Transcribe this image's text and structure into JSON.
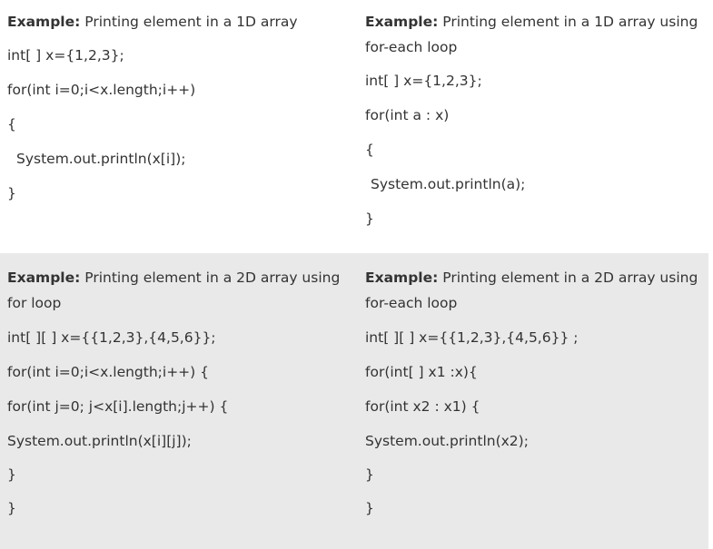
{
  "cells": {
    "c1": {
      "label": "Example:",
      "title": " Printing element in a 1D array",
      "lines": [
        "int[ ] x={1,2,3};",
        "for(int i=0;i<x.length;i++)",
        "{",
        "System.out.println(x[i]);",
        "}"
      ]
    },
    "c2": {
      "label": "Example:",
      "title": " Printing element in a 1D array using for-each loop",
      "lines": [
        "int[ ] x={1,2,3};",
        "for(int a : x)",
        "{",
        "System.out.println(a);",
        "}"
      ]
    },
    "c3": {
      "label": "Example:",
      "title": " Printing element in a 2D array using for loop",
      "lines": [
        "int[ ][ ] x={{1,2,3},{4,5,6}};",
        "for(int i=0;i<x.length;i++) {",
        "for(int j=0; j<x[i].length;j++) {",
        "System.out.println(x[i][j]);",
        "}",
        "}"
      ]
    },
    "c4": {
      "label": "Example:",
      "title": " Printing element in a 2D array using for-each loop",
      "lines": [
        "int[ ][ ] x={{1,2,3},{4,5,6}} ;",
        "for(int[ ] x1 :x){",
        "for(int x2 : x1) {",
        "System.out.println(x2);",
        "}",
        "}"
      ]
    }
  }
}
